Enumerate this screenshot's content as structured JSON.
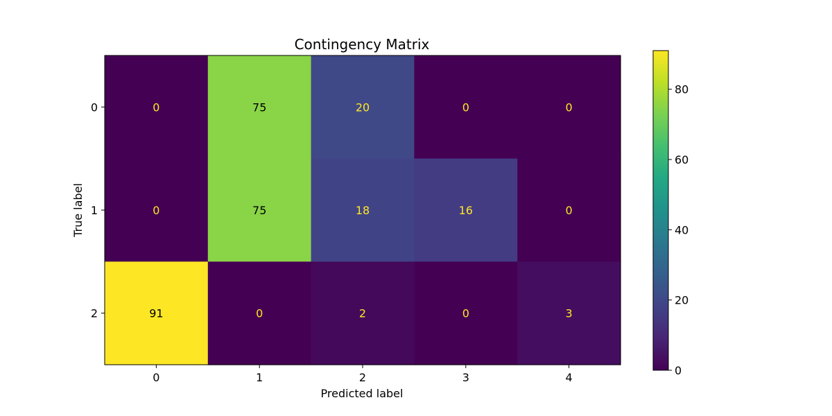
{
  "chart_data": {
    "type": "heatmap",
    "title": "Contingency Matrix",
    "xlabel": "Predicted label",
    "ylabel": "True label",
    "x_categories": [
      "0",
      "1",
      "2",
      "3",
      "4"
    ],
    "y_categories": [
      "0",
      "1",
      "2"
    ],
    "values": [
      [
        0,
        75,
        20,
        0,
        0
      ],
      [
        0,
        75,
        18,
        16,
        0
      ],
      [
        91,
        0,
        2,
        0,
        3
      ]
    ],
    "colormap": "viridis",
    "colorbar": {
      "vmin": 0,
      "vmax": 91,
      "ticks": [
        "0",
        "20",
        "40",
        "60",
        "80"
      ]
    },
    "grid": false
  }
}
